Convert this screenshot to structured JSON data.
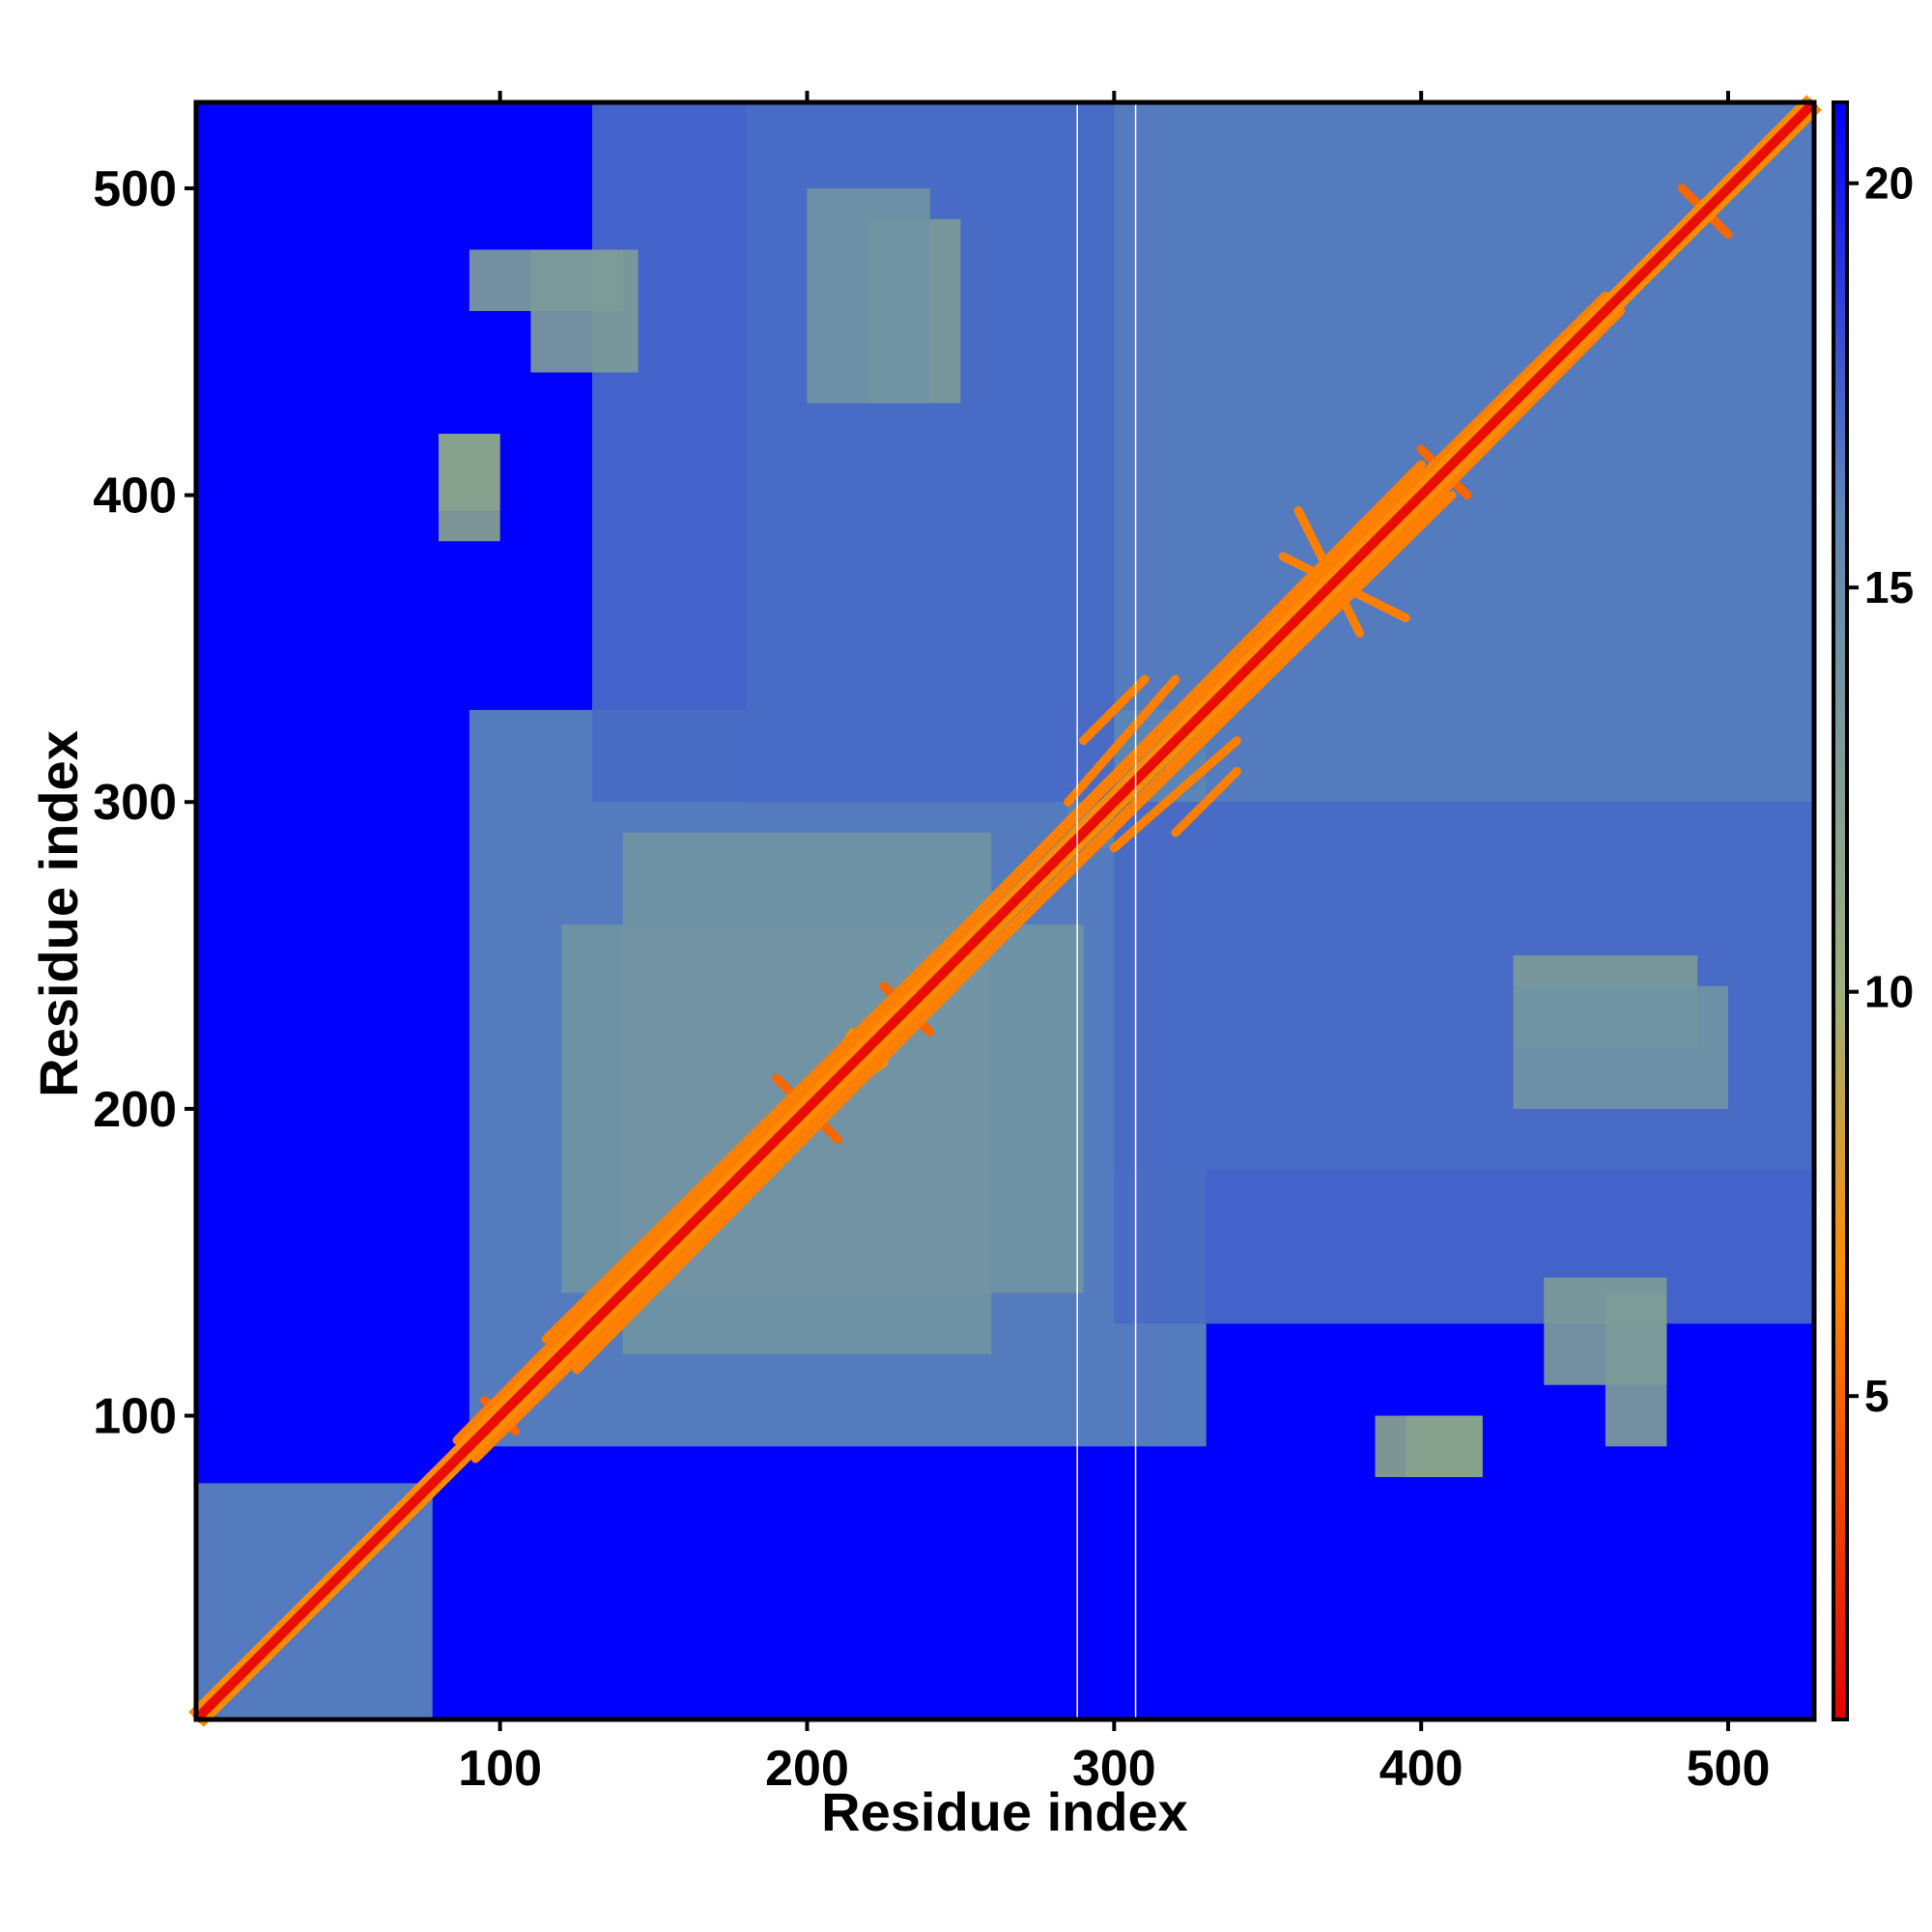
{
  "chart_data": {
    "type": "heatmap",
    "title": "",
    "xlabel": "Residue index",
    "ylabel": "Residue index",
    "xlim": [
      1,
      528
    ],
    "ylim": [
      1,
      528
    ],
    "x_ticks": [
      100,
      200,
      300,
      400,
      500
    ],
    "y_ticks": [
      100,
      200,
      300,
      400,
      500
    ],
    "colorbar": {
      "range": [
        1,
        21
      ],
      "ticks": [
        5,
        10,
        15,
        20
      ],
      "colors": [
        "#e60000",
        "#ff8c00",
        "#9eb07a",
        "#5b86b7",
        "#0000ff"
      ],
      "stops": [
        1,
        6.5,
        10,
        16,
        21
      ]
    },
    "diagonal": {
      "from": 1,
      "to": 528,
      "value": 1.5
    },
    "background_value": 21,
    "contact_blocks": [
      {
        "x": [
          1,
          78
        ],
        "y": [
          1,
          78
        ],
        "value": 16
      },
      {
        "x": [
          90,
          330
        ],
        "y": [
          90,
          330
        ],
        "value": 16
      },
      {
        "x": [
          120,
          290
        ],
        "y": [
          140,
          260
        ],
        "value": 14
      },
      {
        "x": [
          285,
          528
        ],
        "y": [
          285,
          528
        ],
        "value": 16
      },
      {
        "x": [
          130,
          300
        ],
        "y": [
          300,
          528
        ],
        "value": 17
      },
      {
        "x": [
          300,
          528
        ],
        "y": [
          180,
          300
        ],
        "value": 17
      },
      {
        "x": [
          90,
          140
        ],
        "y": [
          460,
          480
        ],
        "value": 13
      },
      {
        "x": [
          80,
          100
        ],
        "y": [
          385,
          420
        ],
        "value": 12
      },
      {
        "x": [
          395,
          420
        ],
        "y": [
          80,
          100
        ],
        "value": 12
      },
      {
        "x": [
          440,
          480
        ],
        "y": [
          110,
          145
        ],
        "value": 13
      },
      {
        "x": [
          220,
          250
        ],
        "y": [
          430,
          490
        ],
        "value": 13
      },
      {
        "x": [
          430,
          500
        ],
        "y": [
          200,
          240
        ],
        "value": 14
      }
    ],
    "secondary_contacts": [
      {
        "from": [
          290,
          320
        ],
        "to": [
          310,
          340
        ],
        "value": 6
      },
      {
        "from": [
          190,
          210
        ],
        "to": [
          210,
          190
        ],
        "value": 5
      },
      {
        "from": [
          225,
          240
        ],
        "to": [
          240,
          225
        ],
        "value": 5
      },
      {
        "from": [
          95,
          105
        ],
        "to": [
          105,
          95
        ],
        "value": 5
      },
      {
        "from": [
          400,
          415
        ],
        "to": [
          415,
          400
        ],
        "value": 5
      },
      {
        "from": [
          485,
          500
        ],
        "to": [
          500,
          485
        ],
        "value": 5
      },
      {
        "from": [
          360,
          395
        ],
        "to": [
          380,
          355
        ],
        "value": 6
      },
      {
        "from": [
          320,
          340
        ],
        "to": [
          285,
          300
        ],
        "value": 6
      },
      {
        "from": [
          180,
          185
        ],
        "to": [
          225,
          215
        ],
        "value": 7
      },
      {
        "from": [
          460,
          465
        ],
        "to": [
          115,
          125
        ],
        "value": 6
      },
      {
        "from": [
          86,
          92
        ],
        "to": [
          400,
          410
        ],
        "value": 6
      },
      {
        "from": [
          400,
          408
        ],
        "to": [
          86,
          92
        ],
        "value": 6
      }
    ],
    "gap_columns": [
      288,
      307
    ]
  }
}
